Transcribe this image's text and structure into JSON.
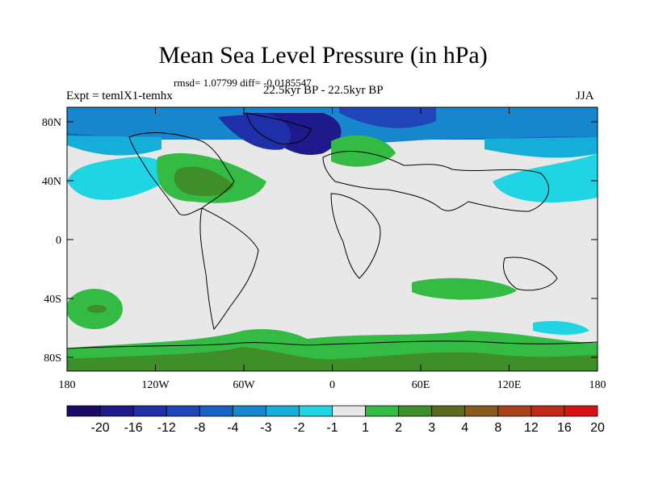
{
  "title": "Mean Sea Level Pressure (in hPa)",
  "stats": "rmsd= 1.07799 diff= -0.0185547",
  "expt": "Expt = temlX1-temhx",
  "subtitle": "22.5kyr BP - 22.5kyr BP",
  "season": "JJA",
  "map": {
    "y_ticks": [
      "80N",
      "40N",
      "0",
      "40S",
      "80S"
    ],
    "x_ticks": [
      "180",
      "120W",
      "60W",
      "0",
      "60E",
      "120E",
      "180"
    ]
  },
  "colorbar": {
    "labels": [
      "-20",
      "-16",
      "-12",
      "-8",
      "-4",
      "-3",
      "-2",
      "-1",
      "1",
      "2",
      "3",
      "4",
      "8",
      "12",
      "16",
      "20"
    ],
    "colors": [
      "#1a0a66",
      "#1e1a8c",
      "#1f2fa8",
      "#1f45b8",
      "#1a61c6",
      "#1686cd",
      "#14aed8",
      "#1fd5e4",
      "#e8e8e8",
      "#33bb44",
      "#3f8e2a",
      "#5a6b1f",
      "#8a5a1c",
      "#a8401a",
      "#c02818",
      "#d61414"
    ]
  }
}
